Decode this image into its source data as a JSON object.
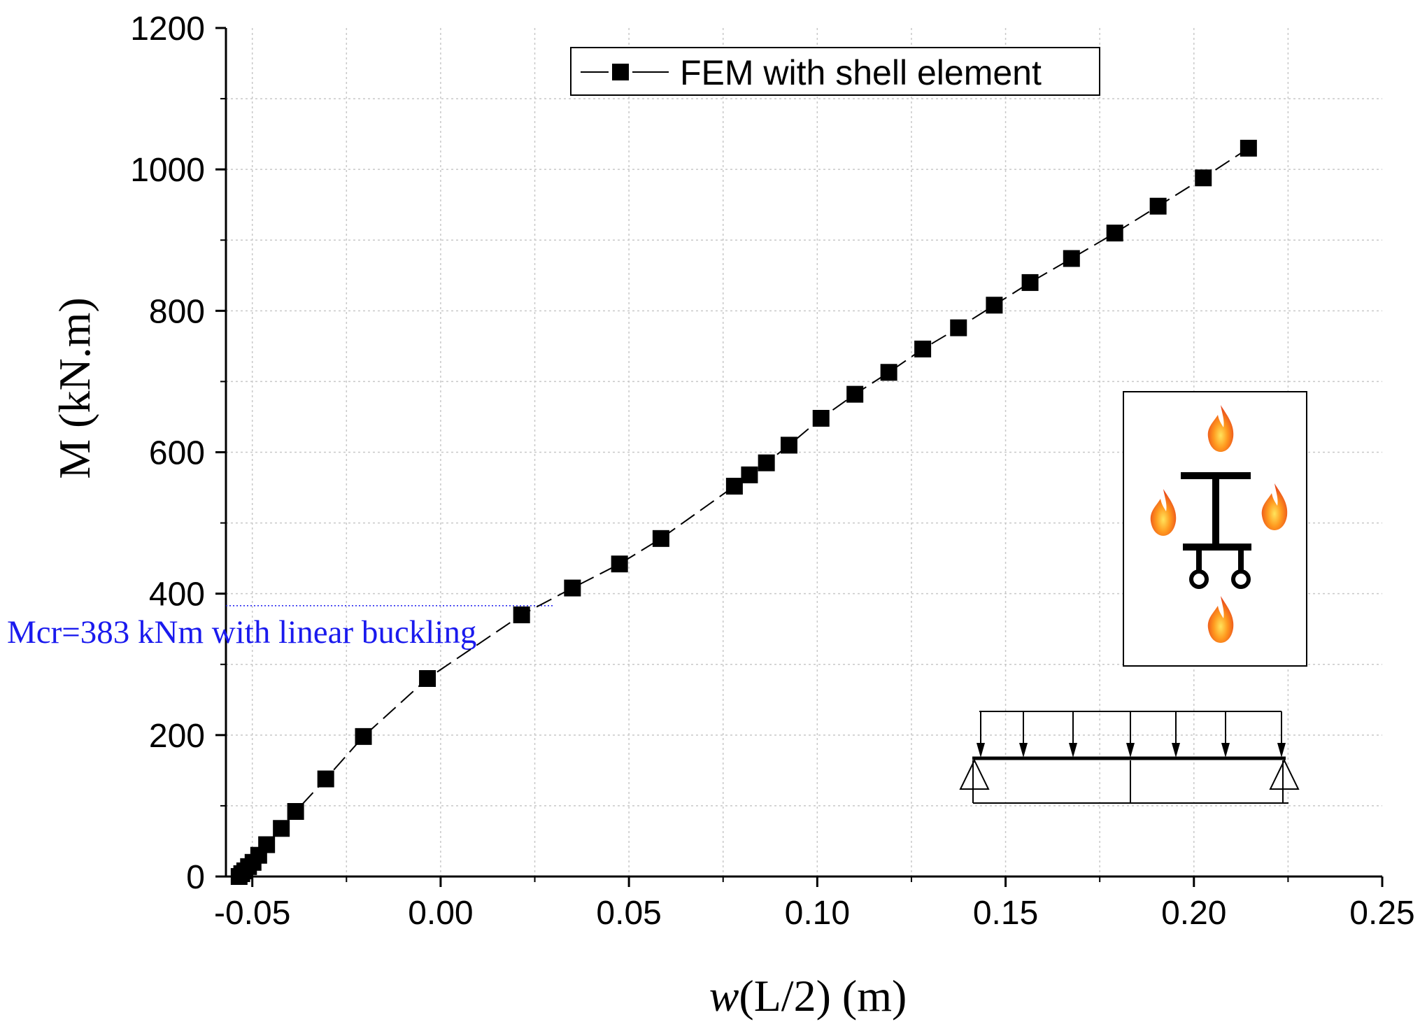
{
  "chart_data": {
    "type": "line",
    "title": "",
    "xlabel_italic": "w",
    "xlabel_rest": "(L/2) (m)",
    "ylabel": "M (kN.m)",
    "xlim": [
      -0.057,
      0.25
    ],
    "ylim": [
      0,
      1200
    ],
    "x_ticks": [
      -0.05,
      0.0,
      0.05,
      0.1,
      0.15,
      0.2,
      0.25
    ],
    "x_tick_labels": [
      "-0.05",
      "0.00",
      "0.05",
      "0.10",
      "0.15",
      "0.20",
      "0.25"
    ],
    "y_ticks": [
      0,
      200,
      400,
      600,
      800,
      1000,
      1200
    ],
    "y_tick_labels": [
      "0",
      "200",
      "400",
      "600",
      "800",
      "1000",
      "1200"
    ],
    "grid": true,
    "legend_position": "top-center",
    "series": [
      {
        "name": "FEM with shell element",
        "marker": "square",
        "line_style": "dashed",
        "color": "#000000",
        "x": [
          -0.0535,
          -0.0528,
          -0.052,
          -0.051,
          -0.0498,
          -0.0483,
          -0.0462,
          -0.0423,
          -0.0385,
          -0.0305,
          -0.0205,
          -0.0035,
          0.0215,
          0.035,
          0.0475,
          0.0585,
          0.078,
          0.082,
          0.0865,
          0.0925,
          0.101,
          0.11,
          0.119,
          0.128,
          0.1375,
          0.147,
          0.1565,
          0.1675,
          0.179,
          0.1905,
          0.2025,
          0.2145
        ],
        "y": [
          0,
          4,
          8,
          14,
          20,
          30,
          45,
          68,
          92,
          138,
          198,
          280,
          370,
          408,
          442,
          478,
          552,
          568,
          585,
          610,
          648,
          682,
          713,
          746,
          776,
          808,
          840,
          874,
          910,
          948,
          988,
          1030
        ]
      }
    ],
    "annotations": [
      {
        "text": "Mcr=383 kNm  with linear buckling",
        "value_y": 383,
        "line_color": "#1a1aee"
      }
    ]
  }
}
